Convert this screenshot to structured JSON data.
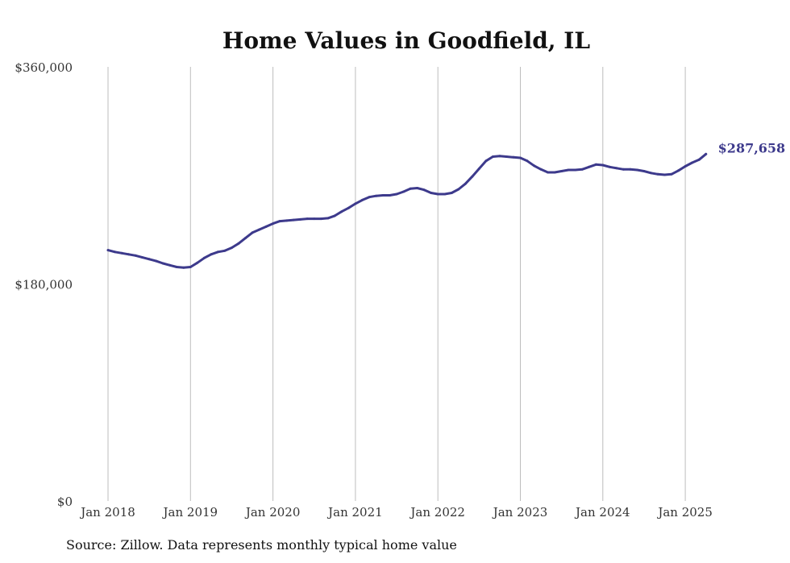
{
  "chart_data": {
    "type": "line",
    "title": "Home Values in Goodfield, IL",
    "xlabel": "",
    "ylabel": "",
    "ylim": [
      0,
      360000
    ],
    "yticks": [
      {
        "value": 0,
        "label": "$0"
      },
      {
        "value": 180000,
        "label": "$180,000"
      },
      {
        "value": 360000,
        "label": "$360,000"
      }
    ],
    "xticks": [
      {
        "year": 2018,
        "label": "Jan 2018"
      },
      {
        "year": 2019,
        "label": "Jan 2019"
      },
      {
        "year": 2020,
        "label": "Jan 2020"
      },
      {
        "year": 2021,
        "label": "Jan 2021"
      },
      {
        "year": 2022,
        "label": "Jan 2022"
      },
      {
        "year": 2023,
        "label": "Jan 2023"
      },
      {
        "year": 2024,
        "label": "Jan 2024"
      },
      {
        "year": 2025,
        "label": "Jan 2025"
      }
    ],
    "grid": "vertical",
    "legend": "none",
    "color": "#3d3a8c",
    "end_label": "$287,658",
    "series": [
      {
        "x": [
          "2018-01",
          "2018-02",
          "2018-03",
          "2018-04",
          "2018-05",
          "2018-06",
          "2018-07",
          "2018-08",
          "2018-09",
          "2018-10",
          "2018-11",
          "2018-12",
          "2019-01",
          "2019-02",
          "2019-03",
          "2019-04",
          "2019-05",
          "2019-06",
          "2019-07",
          "2019-08",
          "2019-09",
          "2019-10",
          "2019-11",
          "2019-12",
          "2020-01",
          "2020-02",
          "2020-03",
          "2020-04",
          "2020-05",
          "2020-06",
          "2020-07",
          "2020-08",
          "2020-09",
          "2020-10",
          "2020-11",
          "2020-12",
          "2021-01",
          "2021-02",
          "2021-03",
          "2021-04",
          "2021-05",
          "2021-06",
          "2021-07",
          "2021-08",
          "2021-09",
          "2021-10",
          "2021-11",
          "2021-12",
          "2022-01",
          "2022-02",
          "2022-03",
          "2022-04",
          "2022-05",
          "2022-06",
          "2022-07",
          "2022-08",
          "2022-09",
          "2022-10",
          "2022-11",
          "2022-12",
          "2023-01",
          "2023-02",
          "2023-03",
          "2023-04",
          "2023-05",
          "2023-06",
          "2023-07",
          "2023-08",
          "2023-09",
          "2023-10",
          "2023-11",
          "2023-12",
          "2024-01",
          "2024-02",
          "2024-03",
          "2024-04",
          "2024-05",
          "2024-06",
          "2024-07",
          "2024-08",
          "2024-09",
          "2024-10",
          "2024-11",
          "2024-12",
          "2025-01",
          "2025-02",
          "2025-03",
          "2025-04"
        ],
        "y": [
          208000,
          206500,
          205500,
          204500,
          203500,
          202000,
          200500,
          199000,
          197000,
          195500,
          194000,
          193500,
          194000,
          197500,
          201500,
          204500,
          206500,
          207500,
          210000,
          213500,
          218000,
          222500,
          225000,
          227500,
          230000,
          232000,
          232500,
          233000,
          233500,
          234000,
          234000,
          234000,
          234500,
          236500,
          240000,
          243000,
          246500,
          249500,
          252000,
          253000,
          253500,
          253500,
          254500,
          256500,
          259000,
          259500,
          258000,
          255500,
          254500,
          254500,
          255500,
          258500,
          263000,
          269000,
          275500,
          282000,
          285500,
          286000,
          285500,
          285000,
          284500,
          282000,
          278000,
          275000,
          272500,
          272500,
          273500,
          274500,
          274500,
          275000,
          277000,
          279000,
          278500,
          277000,
          276000,
          275000,
          275000,
          274500,
          273500,
          272000,
          271000,
          270500,
          271000,
          274000,
          277500,
          280500,
          283000,
          287658
        ]
      }
    ]
  },
  "source": "Source: Zillow. Data represents monthly typical home value"
}
